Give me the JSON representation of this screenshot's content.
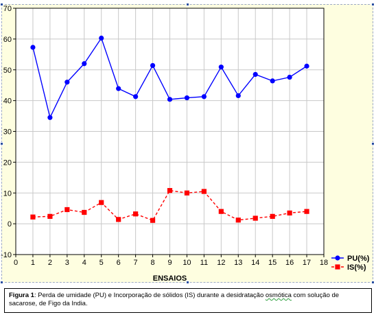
{
  "chart_data": {
    "type": "line",
    "x": [
      1,
      2,
      3,
      4,
      5,
      6,
      7,
      8,
      9,
      10,
      11,
      12,
      13,
      14,
      15,
      16,
      17
    ],
    "xlabel": "ENSAIOS",
    "ylabel": "",
    "xlim": [
      0,
      18
    ],
    "ylim": [
      -10,
      70
    ],
    "xticks": [
      "0",
      "1",
      "2",
      "3",
      "4",
      "5",
      "6",
      "7",
      "8",
      "9",
      "10",
      "11",
      "12",
      "13",
      "14",
      "15",
      "16",
      "17",
      "18"
    ],
    "yticks": [
      "-10",
      "0",
      "10",
      "20",
      "30",
      "40",
      "50",
      "60",
      "70"
    ],
    "grid": true,
    "legend_position": "bottom-right",
    "series": [
      {
        "name": "PU(%)",
        "color": "#0000ff",
        "line_style": "solid",
        "marker": "circle",
        "values": [
          57.3,
          34.5,
          46.0,
          52.0,
          60.3,
          43.9,
          41.3,
          51.4,
          40.4,
          40.9,
          41.3,
          50.9,
          41.6,
          48.5,
          46.4,
          47.6,
          51.2
        ]
      },
      {
        "name": "IS(%)",
        "color": "#ff0000",
        "line_style": "dashed",
        "marker": "square",
        "values": [
          2.2,
          2.4,
          4.6,
          3.7,
          6.9,
          1.4,
          3.2,
          1.1,
          10.8,
          10.0,
          10.5,
          4.0,
          1.2,
          1.8,
          2.4,
          3.5,
          4.0
        ]
      }
    ]
  },
  "caption": {
    "label": "Figura 1",
    "text_before": ": Perda de umidade (PU) e Incorporação de sólidos (IS) durante a desidratação ",
    "underlined_word": "osmótica",
    "text_after": " com solução de sacarose, de Figo da India."
  },
  "colors": {
    "plot_background": "#ffffff",
    "frame_background": "#fefee0",
    "grid": "#c8c8c8",
    "selection_handles": "#2a4fa0"
  }
}
